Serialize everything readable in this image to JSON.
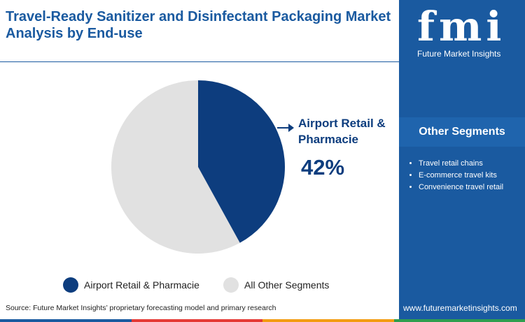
{
  "header": {
    "title": "Travel-Ready Sanitizer and Disinfectant Packaging Market Analysis by End-use"
  },
  "chart_data": {
    "type": "pie",
    "categories": [
      "Airport Retail & Pharmacie",
      "All Other Segments"
    ],
    "values": [
      42,
      58
    ],
    "value_labels": [
      "42%",
      null
    ],
    "colors": [
      "#0d3d7e",
      "#e1e1e1"
    ]
  },
  "sidebar": {
    "logo": "fmi",
    "brand": "Future Market Insights",
    "heading": "Other Segments",
    "items": [
      "Travel retail chains",
      "E-commerce travel kits",
      "Convenience travel retail"
    ],
    "website": "www.futuremarketinsights.com"
  },
  "footer": {
    "source": "Source: Future Market Insights’ proprietary forecasting model and primary research"
  }
}
